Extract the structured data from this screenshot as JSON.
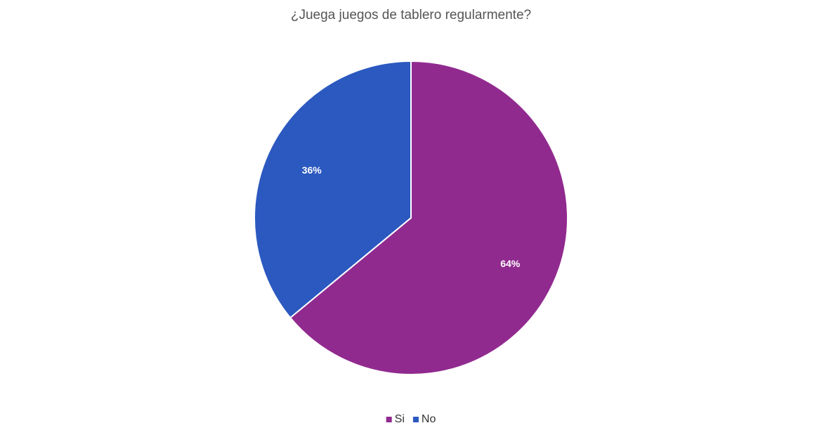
{
  "chart_data": {
    "type": "pie",
    "title": "¿Juega juegos de tablero regularmente?",
    "categories": [
      "Si",
      "No"
    ],
    "values": [
      64,
      36
    ],
    "value_labels": [
      "64%",
      "36%"
    ],
    "colors": [
      "#912a8f",
      "#2b59c0"
    ],
    "legend": "bottom"
  }
}
